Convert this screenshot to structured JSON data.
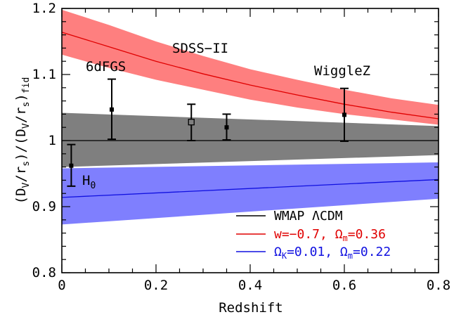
{
  "chart_data": {
    "type": "line",
    "xlabel": "Redshift",
    "ylabel_parts": {
      "a": "(D",
      "a_sub": "V",
      "b": "/r",
      "b_sub": "s",
      "c": ")/(D",
      "c_sub": "V",
      "d": "/r",
      "d_sub": "s",
      "e": ")",
      "e_sub": "fid"
    },
    "xlim": [
      0,
      0.8
    ],
    "ylim": [
      0.8,
      1.2
    ],
    "x_ticks": [
      0,
      0.2,
      0.4,
      0.6,
      0.8
    ],
    "x_tick_labels": [
      "0",
      "0.2",
      "0.4",
      "0.6",
      "0.8"
    ],
    "y_ticks": [
      0.8,
      0.9,
      1.0,
      1.1,
      1.2
    ],
    "y_tick_labels": [
      "0.8",
      "0.9",
      "1",
      "1.1",
      "1.2"
    ],
    "x_minor_step": 0.05,
    "y_minor_step": 0.02,
    "colors": {
      "gray_band": "#7f7f7f",
      "red_band": "#fe7f7f",
      "red_line": "#e00000",
      "blue_band": "#7f7ffe",
      "blue_line": "#1010e0",
      "black": "#000000"
    },
    "bands": [
      {
        "name": "gray",
        "x": [
          0,
          0.8
        ],
        "lower": [
          0.96,
          0.978
        ],
        "upper": [
          1.042,
          1.022
        ]
      },
      {
        "name": "red",
        "x": [
          0,
          0.1,
          0.2,
          0.3,
          0.4,
          0.5,
          0.6,
          0.7,
          0.8
        ],
        "lower": [
          1.13,
          1.11,
          1.092,
          1.077,
          1.062,
          1.05,
          1.04,
          1.032,
          1.024
        ],
        "upper": [
          1.198,
          1.175,
          1.15,
          1.128,
          1.108,
          1.092,
          1.077,
          1.064,
          1.054
        ]
      },
      {
        "name": "blue",
        "x": [
          0,
          0.8
        ],
        "lower": [
          0.873,
          0.912
        ],
        "upper": [
          0.958,
          0.967
        ]
      }
    ],
    "series": [
      {
        "name": "WMAP ΛCDM",
        "x": [
          0,
          0.8
        ],
        "values": [
          1.0,
          1.0
        ],
        "color": "#000000"
      },
      {
        "name": "w=-0.7, Ωm=0.36",
        "x": [
          0,
          0.1,
          0.2,
          0.3,
          0.4,
          0.5,
          0.6,
          0.7,
          0.8
        ],
        "values": [
          1.164,
          1.142,
          1.12,
          1.101,
          1.084,
          1.069,
          1.055,
          1.043,
          1.033
        ],
        "color": "#e00000"
      },
      {
        "name": "ΩK=0.01, Ωm=0.22",
        "x": [
          0,
          0.8
        ],
        "values": [
          0.914,
          0.941
        ],
        "color": "#1010e0"
      }
    ],
    "points": [
      {
        "label": "H",
        "label_sub": "0",
        "x": 0.02,
        "y": 0.962,
        "err_low": 0.931,
        "err_high": 0.994,
        "marker": "filled"
      },
      {
        "label": "6dFGS",
        "x": 0.106,
        "y": 1.047,
        "err_low": 1.002,
        "err_high": 1.093,
        "marker": "filled"
      },
      {
        "label": "SDSS−II",
        "x": 0.275,
        "y": 1.028,
        "err_low": 1.0,
        "err_high": 1.055,
        "marker": "open"
      },
      {
        "label": "",
        "x": 0.35,
        "y": 1.02,
        "err_low": 1.001,
        "err_high": 1.04,
        "marker": "filled"
      },
      {
        "label": "WiggleZ",
        "x": 0.6,
        "y": 1.039,
        "err_low": 0.999,
        "err_high": 1.079,
        "marker": "filled"
      }
    ],
    "legend": {
      "placement": "bottom-right",
      "entries": [
        {
          "text": "WMAP ΛCDM",
          "color": "#000000"
        },
        {
          "text": "w=−0.7, Ω",
          "sub": "m",
          "tail": "=0.36",
          "color": "#e00000"
        },
        {
          "text": "Ω",
          "sub": "K",
          "tail": "=0.01, Ω",
          "sub2": "m",
          "tail2": "=0.22",
          "color": "#1010e0"
        }
      ]
    }
  }
}
